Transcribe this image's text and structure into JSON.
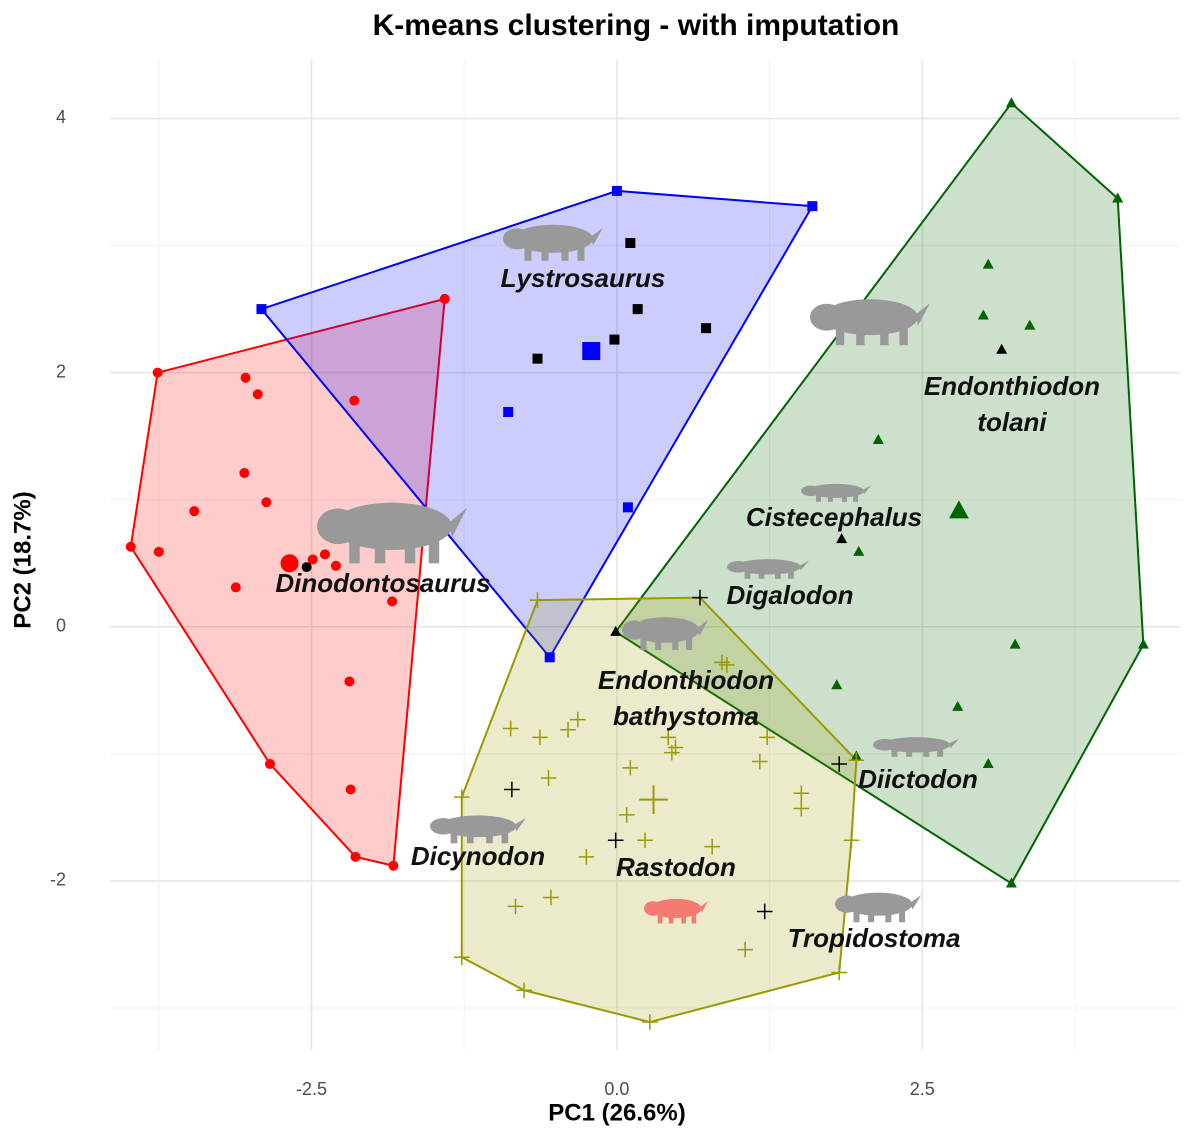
{
  "chart_data": {
    "type": "scatter",
    "title": "K-means clustering - with imputation",
    "x_label": "PC1 (26.6%)",
    "y_label": "PC2 (18.7%)",
    "xlim": [
      -4.15,
      4.61
    ],
    "ylim": [
      -3.33,
      4.46
    ],
    "xticks": [
      -2.5,
      {
        "value": 0,
        "label": "0.0"
      },
      2.5
    ],
    "yticks": [
      -2,
      0,
      2,
      4
    ],
    "x_minor_ticks": [
      -3.75,
      -1.25,
      1.25,
      3.75
    ],
    "y_minor_ticks": [
      -3,
      -1,
      1,
      3
    ],
    "grid": true,
    "highlight_color": "#000000",
    "clusters": [
      {
        "color": "#ff0000",
        "marker": "circle",
        "x": [
          -3.76,
          -3.98,
          -3.75,
          -3.46,
          -3.04,
          -2.94,
          -3.05,
          -2.87,
          -3.12,
          -2.49,
          -2.39,
          -2.3,
          -1.84,
          -2.19,
          -2.18,
          -2.84,
          -2.14,
          -1.83,
          -1.41,
          -2.15
        ],
        "y": [
          2.0,
          0.63,
          0.59,
          0.91,
          1.96,
          1.83,
          1.21,
          0.98,
          0.31,
          0.53,
          0.57,
          0.48,
          0.2,
          -0.43,
          -1.28,
          -1.08,
          -1.81,
          -1.88,
          2.58,
          1.78
        ],
        "highlight_x": [
          -2.54
        ],
        "highlight_y": [
          0.47
        ],
        "centroid_x": -2.68,
        "centroid_y": 0.5
      },
      {
        "color": "#0000ff",
        "marker": "square",
        "x": [
          -2.91,
          0.0,
          1.6,
          -0.89,
          0.09,
          -0.55
        ],
        "y": [
          2.5,
          3.43,
          3.31,
          1.69,
          0.94,
          -0.24
        ],
        "highlight_x": [
          0.11,
          0.17,
          -0.02,
          -0.65,
          0.73
        ],
        "highlight_y": [
          3.02,
          2.5,
          2.26,
          2.11,
          2.35
        ],
        "centroid_x": -0.21,
        "centroid_y": 2.17
      },
      {
        "color": "#006400",
        "marker": "triangle",
        "x": [
          3.23,
          4.1,
          4.31,
          3.23,
          3.04,
          3.0,
          3.38,
          2.14,
          1.98,
          3.26,
          1.8,
          2.79,
          3.04,
          1.96
        ],
        "y": [
          4.12,
          3.37,
          -0.14,
          -2.02,
          2.85,
          2.45,
          2.37,
          1.47,
          0.59,
          -0.14,
          -0.46,
          -0.63,
          -1.08,
          -1.02
        ],
        "highlight_x": [
          -0.01,
          3.15,
          1.84
        ],
        "highlight_y": [
          -0.04,
          2.18,
          0.69
        ],
        "centroid_x": 2.8,
        "centroid_y": 0.91
      },
      {
        "color": "#999900",
        "marker": "cross",
        "x": [
          -0.65,
          1.96,
          1.92,
          1.82,
          0.27,
          -0.76,
          -1.27,
          -1.27,
          -0.87,
          -0.63,
          -0.4,
          -0.32,
          -0.56,
          0.11,
          0.08,
          0.42,
          0.48,
          0.45,
          0.9,
          0.86,
          1.17,
          1.23,
          1.51,
          1.51,
          0.78,
          -0.25,
          0.23,
          -0.54,
          -0.83,
          1.05
        ],
        "y": [
          0.21,
          -1.05,
          -1.68,
          -2.72,
          -3.11,
          -2.86,
          -2.6,
          -1.34,
          -0.8,
          -0.87,
          -0.81,
          -0.73,
          -1.19,
          -1.11,
          -1.48,
          -0.87,
          -0.95,
          -0.99,
          -0.3,
          -0.28,
          -1.06,
          -0.87,
          -1.31,
          -1.43,
          -1.73,
          -1.81,
          -1.68,
          -2.13,
          -2.2,
          -2.54
        ],
        "highlight_x": [
          0.68,
          -0.86,
          -0.01,
          1.82,
          1.21
        ],
        "highlight_y": [
          0.23,
          -1.28,
          -1.68,
          -1.08,
          -2.24
        ],
        "centroid_x": 0.3,
        "centroid_y": -1.36
      }
    ],
    "annotations": [
      {
        "lines": [
          "Lystrosaurus"
        ]
      },
      {
        "lines": [
          "Endonthiodon",
          "tolani"
        ]
      },
      {
        "lines": [
          "Cistecephalus"
        ]
      },
      {
        "lines": [
          "Dinodontosaurus"
        ]
      },
      {
        "lines": [
          "Digalodon"
        ]
      },
      {
        "lines": [
          "Endonthiodon",
          "bathystoma"
        ]
      },
      {
        "lines": [
          "Diictodon"
        ]
      },
      {
        "lines": [
          "Dicynodon"
        ]
      },
      {
        "lines": [
          "Rastodon"
        ]
      },
      {
        "lines": [
          "Tropidostoma"
        ]
      }
    ]
  }
}
